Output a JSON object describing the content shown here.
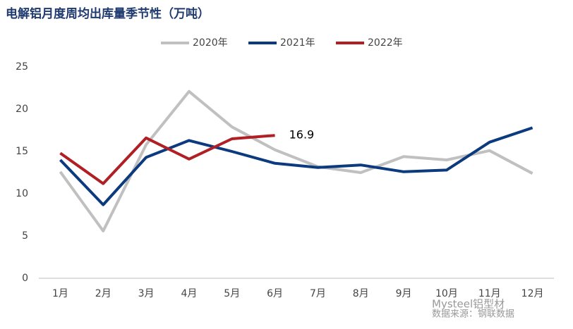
{
  "chart_data": {
    "type": "line",
    "title": "电解铝月度周均出库量季节性（万吨）",
    "categories": [
      "1月",
      "2月",
      "3月",
      "4月",
      "5月",
      "6月",
      "7月",
      "8月",
      "9月",
      "10月",
      "11月",
      "12月"
    ],
    "series": [
      {
        "name": "2020年",
        "color": "#c0c0c0",
        "values": [
          12.6,
          5.6,
          15.8,
          22.1,
          17.9,
          15.2,
          13.2,
          12.5,
          14.4,
          14.0,
          15.1,
          12.4
        ]
      },
      {
        "name": "2021年",
        "color": "#0b3a7e",
        "values": [
          14.0,
          8.7,
          14.3,
          16.3,
          15.0,
          13.6,
          13.1,
          13.4,
          12.6,
          12.8,
          16.1,
          17.8
        ]
      },
      {
        "name": "2022年",
        "color": "#b01f24",
        "values": [
          14.8,
          11.2,
          16.6,
          14.1,
          16.5,
          16.9,
          null,
          null,
          null,
          null,
          null,
          null
        ],
        "value_labels": [
          null,
          null,
          null,
          null,
          null,
          "16.9",
          null,
          null,
          null,
          null,
          null,
          null
        ]
      }
    ],
    "ylim": [
      0,
      25
    ],
    "yticks": [
      0,
      5,
      10,
      15,
      20,
      25
    ],
    "legend": "top",
    "source": "数据来源：钢联数据",
    "watermark": "Mysteel铝型材"
  }
}
